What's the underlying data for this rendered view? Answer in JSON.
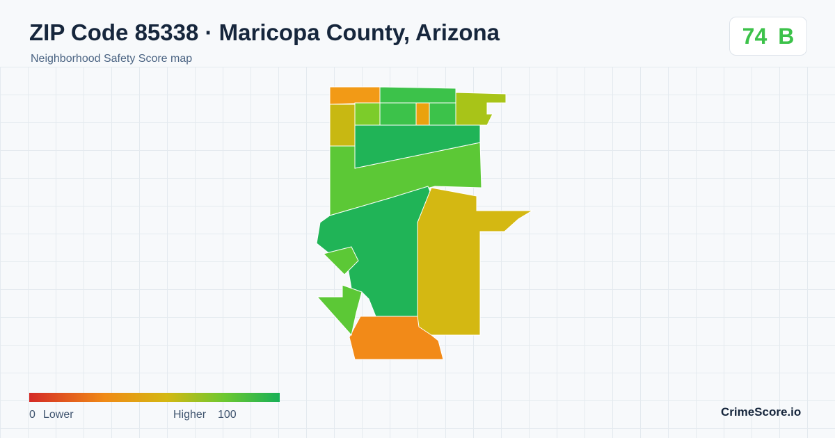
{
  "header": {
    "title": "ZIP Code 85338 · Maricopa County, Arizona",
    "subtitle": "Neighborhood Safety Score map"
  },
  "score": {
    "value": 74,
    "grade": "B"
  },
  "legend": {
    "min": 0,
    "min_label": "Lower",
    "max_label": "Higher",
    "max": 100
  },
  "brand": "CrimeScore.io"
}
